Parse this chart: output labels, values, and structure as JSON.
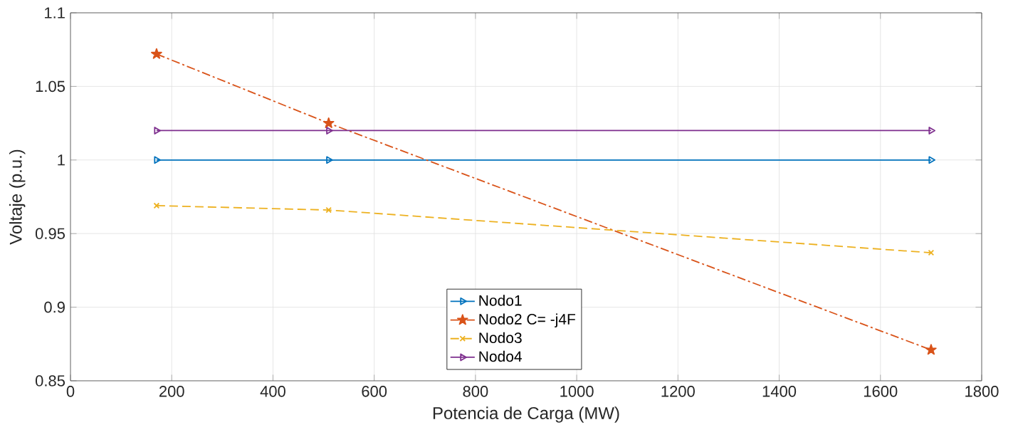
{
  "chart_data": {
    "type": "line",
    "xlabel": "Potencia de Carga (MW)",
    "ylabel": "Voltaje (p.u.)",
    "x": [
      170,
      510,
      1700
    ],
    "series": [
      {
        "name": "Nodo1",
        "color": "#0072bd",
        "values": [
          1.0,
          1.0,
          1.0
        ],
        "marker": "triangle",
        "line_style": "solid"
      },
      {
        "name": "Nodo2 C= -j4F",
        "color": "#d95319",
        "values": [
          1.072,
          1.025,
          0.871
        ],
        "marker": "star",
        "line_style": "dashdot"
      },
      {
        "name": "Nodo3",
        "color": "#edb120",
        "values": [
          0.969,
          0.966,
          0.937
        ],
        "marker": "cross",
        "line_style": "dashed"
      },
      {
        "name": "Nodo4",
        "color": "#7e2f8e",
        "values": [
          1.02,
          1.02,
          1.02
        ],
        "marker": "triangle",
        "line_style": "solid"
      }
    ],
    "xlim": [
      0,
      1800
    ],
    "xticks": [
      0,
      200,
      400,
      600,
      800,
      1000,
      1200,
      1400,
      1600,
      1800
    ],
    "ylim": [
      0.85,
      1.1
    ],
    "yticks": [
      0.85,
      0.9,
      0.95,
      1,
      1.05,
      1.1
    ],
    "grid": true,
    "legend": "bottom"
  }
}
